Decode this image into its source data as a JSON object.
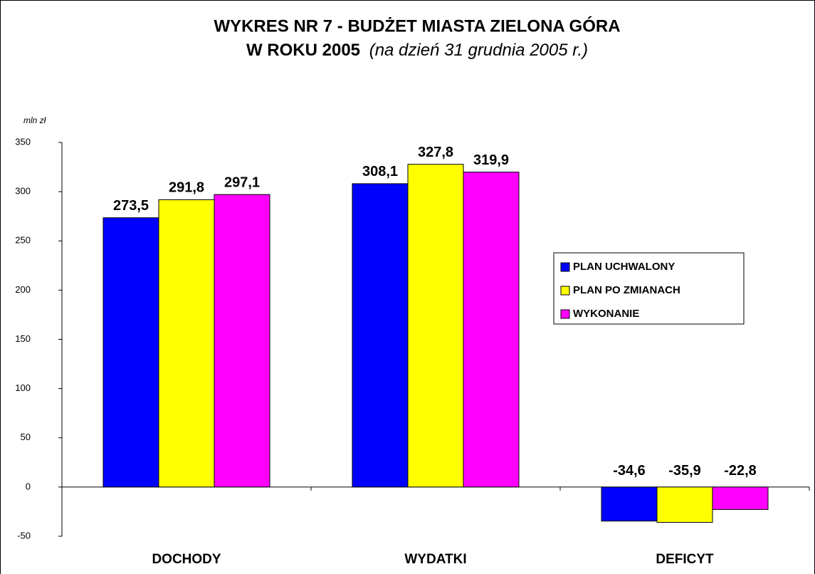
{
  "chart_data": {
    "type": "bar",
    "title": [
      "WYKRES NR 7 - BUDŻET MIASTA ZIELONA GÓRA",
      "W ROKU 2005"
    ],
    "subtitle": "(na dzień 31 grudnia 2005 r.)",
    "y_label": "mln zł",
    "categories": [
      "DOCHODY",
      "WYDATKI",
      "DEFICYT"
    ],
    "series": [
      {
        "name": "PLAN UCHWALONY",
        "color": "#0000ff",
        "values": [
          273.5,
          308.1,
          -34.6
        ],
        "value_labels": [
          "273,5",
          "308,1",
          "-34,6"
        ]
      },
      {
        "name": "PLAN PO ZMIANACH",
        "color": "#ffff00",
        "values": [
          291.8,
          327.8,
          -35.9
        ],
        "value_labels": [
          "291,8",
          "327,8",
          "-35,9"
        ]
      },
      {
        "name": "WYKONANIE",
        "color": "#ff00ff",
        "values": [
          297.1,
          319.9,
          -22.8
        ],
        "value_labels": [
          "297,1",
          "319,9",
          "-22,8"
        ]
      }
    ],
    "ylim": [
      -50,
      350
    ],
    "yticks": [
      -50,
      0,
      50,
      100,
      150,
      200,
      250,
      300,
      350
    ],
    "legend": "right"
  }
}
